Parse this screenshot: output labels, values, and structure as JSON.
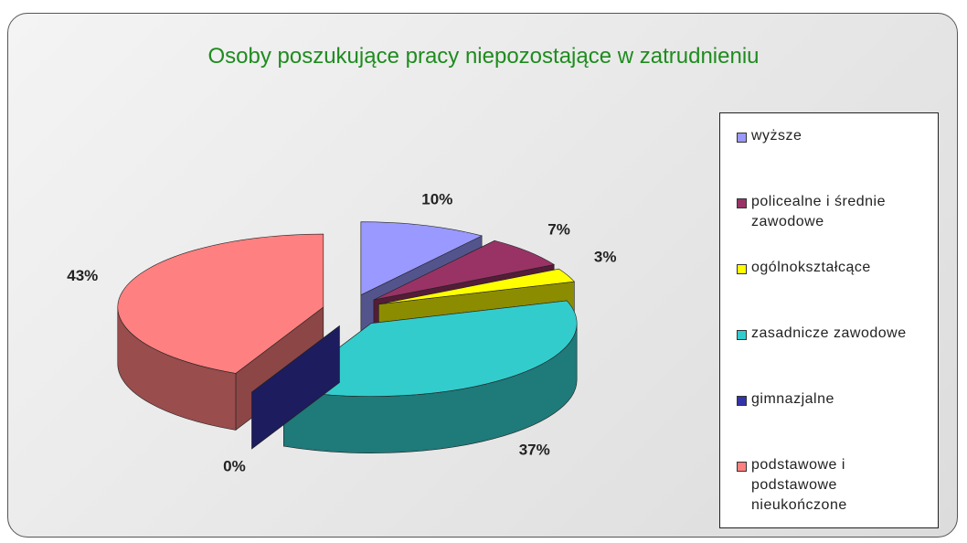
{
  "chart_data": {
    "type": "pie3d",
    "title": "Osoby poszukujące pracy niepozostające w zatrudnieniu",
    "categories": [
      "wyższe",
      "policealne i średnie zawodowe",
      "ogólnokształcące",
      "zasadnicze zawodowe",
      "gimnazjalne",
      "podstawowe i podstawowe nieukończone"
    ],
    "values": [
      10,
      7,
      3,
      37,
      0,
      43
    ],
    "value_labels": [
      "10%",
      "7%",
      "3%",
      "37%",
      "0%",
      "43%"
    ],
    "colors": [
      "#9999ff",
      "#993366",
      "#ffff00",
      "#33cccc",
      "#3333aa",
      "#ff8080"
    ],
    "legend": "right"
  }
}
